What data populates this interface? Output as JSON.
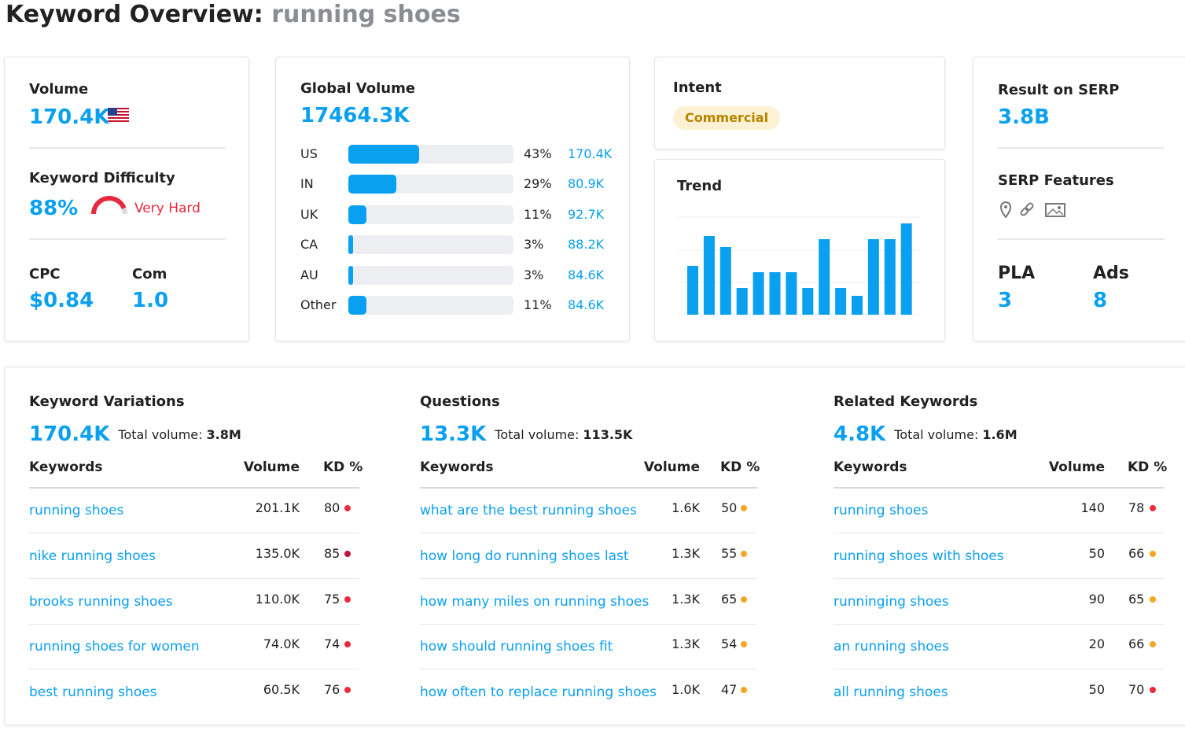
{
  "header": {
    "title": "Keyword Overview:",
    "keyword": "running shoes"
  },
  "volume": {
    "label": "Volume",
    "value": "170.4K"
  },
  "keyword_difficulty": {
    "label": "Keyword Difficulty",
    "value": 88,
    "value_label": "88%",
    "level": "Very Hard"
  },
  "cpc": {
    "label": "CPC",
    "value": "$0.84"
  },
  "com": {
    "label": "Com",
    "value": "1.0"
  },
  "global_volume": {
    "label": "Global Volume",
    "value": "17464.3K",
    "countries": [
      {
        "name": "US",
        "share": 43,
        "share_label": "43%",
        "volume": "170.4K"
      },
      {
        "name": "IN",
        "share": 29,
        "share_label": "29%",
        "volume": "80.9K"
      },
      {
        "name": "UK",
        "share": 11,
        "share_label": "11%",
        "volume": "92.7K"
      },
      {
        "name": "CA",
        "share": 3,
        "share_label": "3%",
        "volume": "88.2K"
      },
      {
        "name": "AU",
        "share": 3,
        "share_label": "3%",
        "volume": "84.6K"
      },
      {
        "name": "Other",
        "share": 11,
        "share_label": "11%",
        "volume": "84.6K"
      }
    ]
  },
  "intent": {
    "label": "Intent",
    "value": "Commercial"
  },
  "trend": {
    "label": "Trend",
    "values": [
      62,
      100,
      86,
      34,
      54,
      54,
      54,
      34,
      96,
      34,
      24,
      96,
      96,
      116
    ]
  },
  "serp": {
    "result_label": "Result on SERP",
    "result": "3.8B",
    "features_label": "SERP Features",
    "pla_label": "PLA",
    "pla": 3,
    "ads_label": "Ads",
    "ads": 8
  },
  "sections": [
    {
      "title": "Keyword Variations",
      "count": "170.4K",
      "total_label": "Total volume:",
      "total": "3.8M",
      "columns": [
        "Keywords",
        "Volume",
        "KD %"
      ],
      "rows": [
        {
          "keyword": "running shoes",
          "volume": "201.1K",
          "kd": 80
        },
        {
          "keyword": "nike running shoes",
          "volume": "135.0K",
          "kd": 85
        },
        {
          "keyword": "brooks running shoes",
          "volume": "110.0K",
          "kd": 75
        },
        {
          "keyword": "running shoes for women",
          "volume": "74.0K",
          "kd": 74
        },
        {
          "keyword": "best running shoes",
          "volume": "60.5K",
          "kd": 76
        }
      ]
    },
    {
      "title": "Questions",
      "count": "13.3K",
      "total_label": "Total volume:",
      "total": "113.5K",
      "columns": [
        "Keywords",
        "Volume",
        "KD %"
      ],
      "rows": [
        {
          "keyword": "what are the best running shoes",
          "volume": "1.6K",
          "kd": 50
        },
        {
          "keyword": "how long do running shoes last",
          "volume": "1.3K",
          "kd": 55
        },
        {
          "keyword": "how many miles on running shoes",
          "volume": "1.3K",
          "kd": 65
        },
        {
          "keyword": "how should running shoes fit",
          "volume": "1.3K",
          "kd": 54
        },
        {
          "keyword": "how often to replace running shoes",
          "volume": "1.0K",
          "kd": 47
        }
      ]
    },
    {
      "title": "Related Keywords",
      "count": "4.8K",
      "total_label": "Total volume:",
      "total": "1.6M",
      "columns": [
        "Keywords",
        "Volume",
        "KD %"
      ],
      "rows": [
        {
          "keyword": "running shoes",
          "volume": "140",
          "kd": 78
        },
        {
          "keyword": "running shoes with shoes",
          "volume": "50",
          "kd": 66
        },
        {
          "keyword": "runninging shoes",
          "volume": "90",
          "kd": 65
        },
        {
          "keyword": "an running shoes",
          "volume": "20",
          "kd": 66
        },
        {
          "keyword": "all running shoes",
          "volume": "50",
          "kd": 70
        }
      ]
    }
  ]
}
